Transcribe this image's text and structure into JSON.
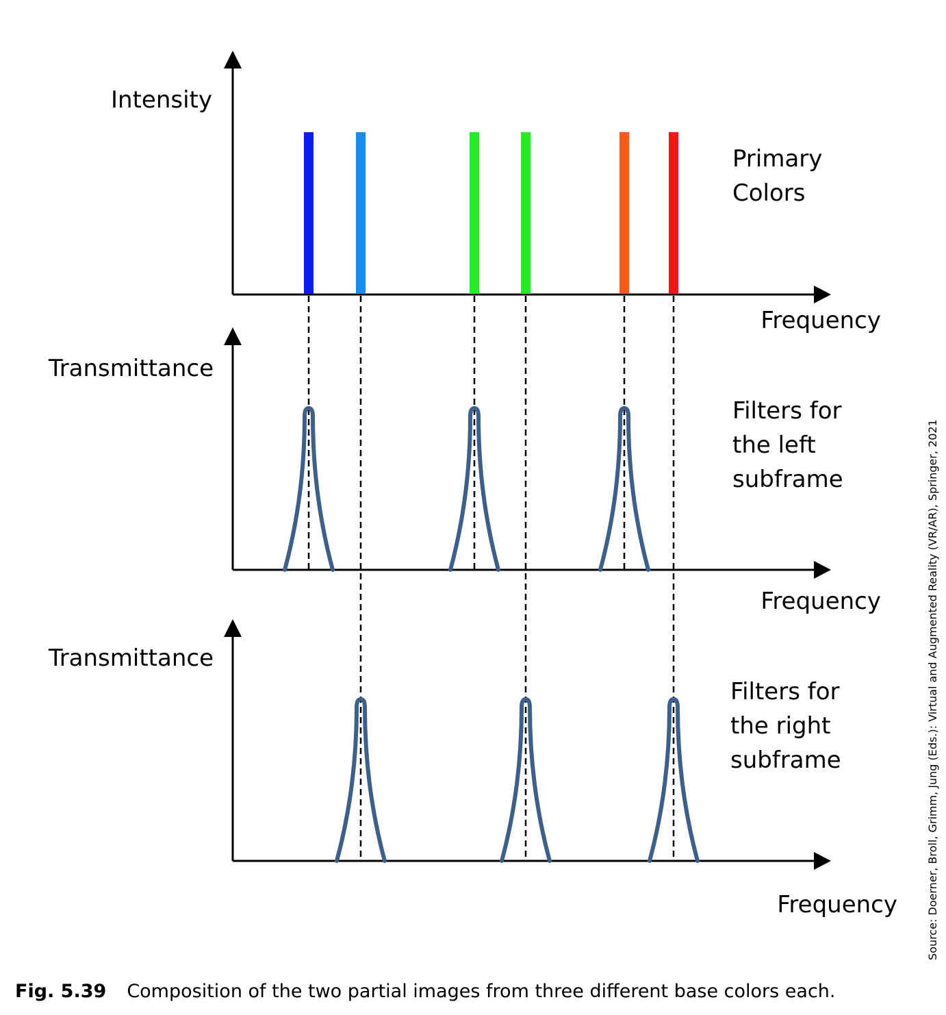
{
  "panels": [
    {
      "id": "primary",
      "y_label": "Intensity",
      "x_label": "Frequency",
      "text_lines": [
        "Primary",
        "Colors"
      ]
    },
    {
      "id": "left",
      "y_label": "Transmittance",
      "x_label": "Frequency",
      "text_lines": [
        "Filters for",
        "the left",
        "subframe"
      ]
    },
    {
      "id": "right",
      "y_label": "Transmittance",
      "x_label": "Frequency",
      "text_lines": [
        "Filters for",
        "the right",
        "subframe"
      ]
    }
  ],
  "primary_lines": [
    {
      "name": "blue",
      "color": "#0c1cf2"
    },
    {
      "name": "light-blue",
      "color": "#1a8cf0"
    },
    {
      "name": "green-1",
      "color": "#22ee22"
    },
    {
      "name": "green-2",
      "color": "#22ee22"
    },
    {
      "name": "orange",
      "color": "#ff5a14"
    },
    {
      "name": "red",
      "color": "#ff1414"
    }
  ],
  "filter_color": "#3d5f8c",
  "source": "Source: Doerner, Broll, Grimm, Jung (Eds.): Virtual and Augmented Reality (VR/AR), Springer, 2021",
  "caption": {
    "figure_number": "Fig. 5.39",
    "text": "Composition of the two partial images from three different base colors each."
  }
}
